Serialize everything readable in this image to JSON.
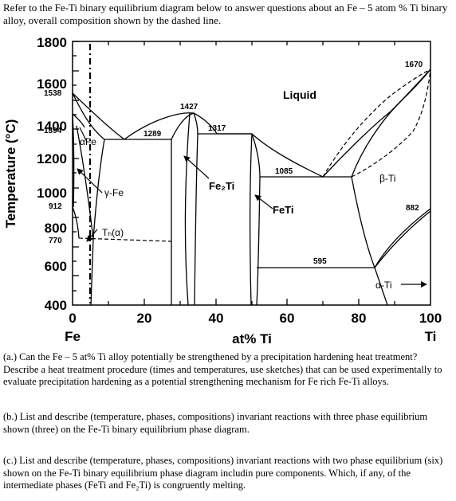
{
  "intro": "Refer to the Fe-Ti binary equilibrium diagram below to answer questions about an Fe – 5 atom % Ti binary alloy, overall composition shown by the dashed line.",
  "diagram": {
    "y_axis_title": "Temperature (°C)",
    "x_axis_title": "at% Ti",
    "x_left_element": "Fe",
    "x_right_element": "Ti",
    "y_ticks": [
      "1800",
      "1600",
      "1400",
      "1200",
      "1000",
      "800",
      "600",
      "400"
    ],
    "x_ticks": [
      "0",
      "20",
      "40",
      "60",
      "80",
      "100"
    ],
    "temp_labels": {
      "t1538": "1538",
      "t1394": "1394",
      "t912": "912",
      "t770": "770",
      "t1427": "1427",
      "t1289": "1289",
      "t1317": "1317",
      "t1085": "1085",
      "t1670": "1670",
      "t882": "882",
      "t595": "595"
    },
    "phase_labels": {
      "liquid": "Liquid",
      "alpha_fe": "αFe",
      "gamma_fe": "γ-Fe",
      "tc_alpha": "Tₕ(α)",
      "fe2ti": "Fe₂Ti",
      "feti": "FeTi",
      "beta_ti": "β-Ti",
      "alpha_ti": "α-Ti"
    },
    "overall_composition_at_pct_ti": 5
  },
  "questions": {
    "a_label": "(a.)",
    "a_text": "Can the Fe – 5 at% Ti alloy potentially be strengthened by a precipitation hardening heat treatment? Describe a heat treatment procedure (times and temperatures, use sketches) that can be used experimentally to evaluate precipitation hardening as a potential strengthening mechanism for Fe rich Fe-Ti alloys.",
    "b_label": "(b.)",
    "b_text": "List and describe (temperature, phases, compositions) invariant reactions with three phase equilibrium shown (three) on the Fe-Ti binary equilibrium phase diagram.",
    "c_label": "(c.)",
    "c_text": "List and describe (temperature, phases, compositions) invariant reactions with two phase equilibrium (six) shown on the Fe-Ti binary equilibrium phase diagram includin pure components. Which, if any, of the intermediate phases (FeTi and Fe₂Ti) is congruently melting."
  }
}
